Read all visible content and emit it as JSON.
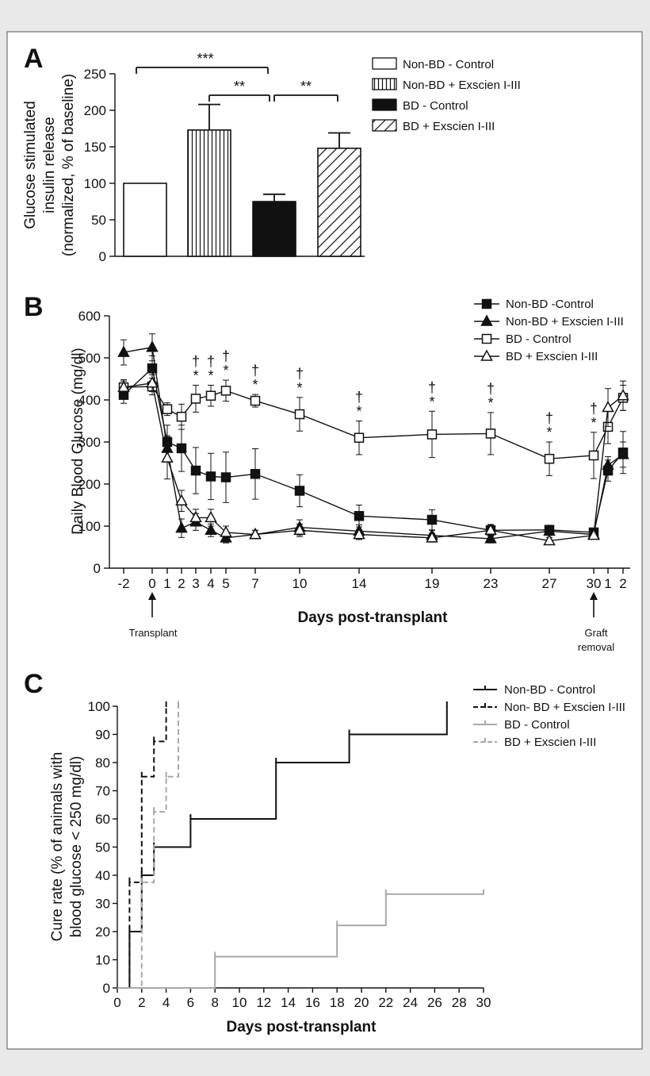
{
  "chart_data": [
    {
      "panel": "A",
      "type": "bar",
      "ylabel_lines": [
        "Glucose stimulated",
        "insulin release",
        "(normalized, % of baseline)"
      ],
      "ylim": [
        0,
        250
      ],
      "yticks": [
        "0",
        "50",
        "100",
        "150",
        "200",
        "250"
      ],
      "categories": [
        "Non-BD - Control",
        "Non-BD + Exscien I-III",
        "BD - Control",
        "BD + Exscien I-III"
      ],
      "values": [
        100,
        173,
        75,
        148
      ],
      "errors": [
        0,
        35,
        10,
        21
      ],
      "fills": [
        "white",
        "vertical-stripes",
        "black",
        "diagonal-hatch"
      ],
      "legend": [
        "Non-BD - Control",
        "Non-BD + Exscien I-III",
        "BD - Control",
        "BD + Exscien I-III"
      ],
      "significance": [
        {
          "from": 0,
          "to": 2,
          "label": "***"
        },
        {
          "from": 1,
          "to": 2,
          "label": "**"
        },
        {
          "from": 2,
          "to": 3,
          "label": "**"
        }
      ]
    },
    {
      "panel": "B",
      "type": "line",
      "ylabel": "Daily Blood Glucose (mg/dl)",
      "xlabel": "Days post-transplant",
      "ylim": [
        0,
        600
      ],
      "yticks": [
        "0",
        "100",
        "200",
        "300",
        "400",
        "500",
        "600"
      ],
      "xtick_labels": [
        "-2",
        "0",
        "1",
        "2",
        "3",
        "4",
        "5",
        "7",
        "10",
        "14",
        "19",
        "23",
        "27",
        "30",
        "1",
        "2"
      ],
      "annotations": {
        "transplant": "Transplant",
        "removal": "Graft removal",
        "dagger": "†",
        "star": "*"
      },
      "series": [
        {
          "name": "Non-BD -Control",
          "marker": "filled-square",
          "values": [
            412,
            475,
            300,
            285,
            232,
            218,
            216,
            224,
            184,
            124,
            115,
            90,
            91,
            85,
            232,
            275
          ],
          "errors": [
            20,
            30,
            40,
            55,
            55,
            55,
            60,
            60,
            38,
            26,
            24,
            14,
            11,
            10,
            25,
            50
          ]
        },
        {
          "name": "Non-BD + Exscien I-III",
          "marker": "filled-triangle",
          "values": [
            513,
            525,
            285,
            95,
            110,
            90,
            72,
            80,
            97,
            88,
            78,
            70,
            88,
            80,
            245,
            270
          ],
          "errors": [
            30,
            32,
            30,
            22,
            20,
            15,
            12,
            10,
            18,
            15,
            12,
            10,
            10,
            8,
            20,
            30
          ]
        },
        {
          "name": "BD - Control",
          "marker": "open-square",
          "values": [
            430,
            432,
            378,
            360,
            403,
            410,
            422,
            398,
            366,
            310,
            318,
            320,
            260,
            268,
            336,
            405
          ],
          "errors": [
            18,
            20,
            15,
            30,
            32,
            25,
            25,
            15,
            40,
            40,
            55,
            50,
            40,
            55,
            40,
            30
          ]
        },
        {
          "name": "BD + Exscien I-III",
          "marker": "open-triangle",
          "values": [
            430,
            440,
            262,
            160,
            120,
            120,
            85,
            80,
            90,
            80,
            72,
            90,
            65,
            78,
            382,
            410
          ],
          "errors": [
            15,
            20,
            50,
            25,
            20,
            20,
            15,
            10,
            15,
            12,
            10,
            12,
            8,
            8,
            45,
            35
          ]
        }
      ],
      "significance_days": [
        "3",
        "4",
        "5",
        "7",
        "10",
        "14",
        "19",
        "23",
        "27",
        "30"
      ],
      "legend": [
        "Non-BD -Control",
        "Non-BD + Exscien I-III",
        "BD - Control",
        "BD + Exscien I-III"
      ]
    },
    {
      "panel": "C",
      "type": "step",
      "ylabel_lines": [
        "Cure rate (% of animals with",
        "blood glucose < 250 mg/dl)"
      ],
      "xlabel": "Days post-transplant",
      "xlim": [
        0,
        30
      ],
      "ylim": [
        0,
        100
      ],
      "xticks": [
        "0",
        "2",
        "4",
        "6",
        "8",
        "10",
        "12",
        "14",
        "16",
        "18",
        "20",
        "22",
        "24",
        "26",
        "28",
        "30"
      ],
      "yticks": [
        "0",
        "10",
        "20",
        "30",
        "40",
        "50",
        "60",
        "70",
        "80",
        "90",
        "100"
      ],
      "series": [
        {
          "name": "Non-BD - Control",
          "color": "#111111",
          "dash": "solid",
          "points": [
            [
              0,
              0
            ],
            [
              1,
              20
            ],
            [
              2,
              40
            ],
            [
              3,
              50
            ],
            [
              6,
              60
            ],
            [
              13,
              80
            ],
            [
              19,
              90
            ],
            [
              27,
              100
            ]
          ]
        },
        {
          "name": "Non- BD + Exscien I-III",
          "color": "#111111",
          "dash": "dashed",
          "points": [
            [
              0,
              0
            ],
            [
              1,
              37.5
            ],
            [
              2,
              75
            ],
            [
              3,
              87.5
            ],
            [
              4,
              100
            ]
          ]
        },
        {
          "name": "BD - Control",
          "color": "#a8a8a8",
          "dash": "solid",
          "points": [
            [
              0,
              0
            ],
            [
              8,
              11.1
            ],
            [
              18,
              22.2
            ],
            [
              22,
              33.3
            ],
            [
              30,
              33.3
            ]
          ]
        },
        {
          "name": "BD + Exscien I-III",
          "color": "#a8a8a8",
          "dash": "dashed",
          "points": [
            [
              0,
              0
            ],
            [
              2,
              37.5
            ],
            [
              3,
              62.5
            ],
            [
              4,
              75
            ],
            [
              5,
              100
            ]
          ]
        }
      ],
      "legend": [
        "Non-BD - Control",
        "Non- BD + Exscien I-III",
        "BD - Control",
        "BD + Exscien I-III"
      ]
    }
  ]
}
